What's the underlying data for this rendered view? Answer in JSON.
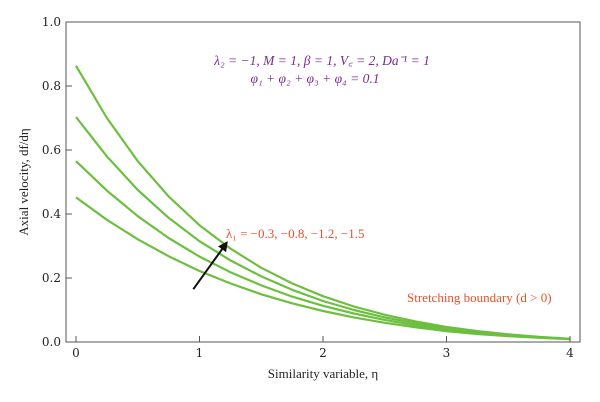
{
  "chart_data": {
    "type": "line",
    "xlabel": "Similarity variable, η",
    "ylabel": "Axial velocity, df/dη",
    "xlim": [
      0,
      4
    ],
    "ylim": [
      0,
      1.0
    ],
    "xticks": [
      "0",
      "1",
      "2",
      "3",
      "4"
    ],
    "yticks": [
      "0.0",
      "0.2",
      "0.4",
      "0.6",
      "0.8",
      "1.0"
    ],
    "grid": false,
    "series": [
      {
        "x": [
          0,
          0.25,
          0.5,
          0.75,
          1,
          1.25,
          1.5,
          1.75,
          2,
          2.25,
          2.5,
          2.75,
          3,
          3.25,
          3.5,
          3.75,
          4
        ],
        "values": [
          0.863,
          0.7,
          0.565,
          0.455,
          0.365,
          0.292,
          0.232,
          0.183,
          0.143,
          0.111,
          0.085,
          0.064,
          0.047,
          0.034,
          0.024,
          0.016,
          0.01
        ]
      },
      {
        "x": [
          0,
          0.25,
          0.5,
          0.75,
          1,
          1.25,
          1.5,
          1.75,
          2,
          2.25,
          2.5,
          2.75,
          3,
          3.25,
          3.5,
          3.75,
          4
        ],
        "values": [
          0.703,
          0.58,
          0.475,
          0.388,
          0.315,
          0.255,
          0.205,
          0.163,
          0.128,
          0.1,
          0.077,
          0.058,
          0.043,
          0.031,
          0.022,
          0.015,
          0.01
        ]
      },
      {
        "x": [
          0,
          0.25,
          0.5,
          0.75,
          1,
          1.25,
          1.5,
          1.75,
          2,
          2.25,
          2.5,
          2.75,
          3,
          3.25,
          3.5,
          3.75,
          4
        ],
        "values": [
          0.565,
          0.473,
          0.393,
          0.325,
          0.267,
          0.218,
          0.177,
          0.142,
          0.113,
          0.089,
          0.069,
          0.052,
          0.039,
          0.028,
          0.02,
          0.014,
          0.01
        ]
      },
      {
        "x": [
          0,
          0.25,
          0.5,
          0.75,
          1,
          1.25,
          1.5,
          1.75,
          2,
          2.25,
          2.5,
          2.75,
          3,
          3.25,
          3.5,
          3.75,
          4
        ],
        "values": [
          0.452,
          0.382,
          0.321,
          0.268,
          0.222,
          0.183,
          0.149,
          0.121,
          0.097,
          0.077,
          0.06,
          0.046,
          0.034,
          0.025,
          0.018,
          0.013,
          0.009
        ]
      }
    ],
    "annotations": {
      "params_line1": "λ₂ = −1, M = 1, β = 1, V꜀ = 2, Da⁻¹ = 1",
      "params_line2": "φ₁ + φ₂ + φ₃ + φ₄ = 0.1",
      "lambda_label": "λ₁ = −0.3, −0.8, −1.2, −1.5",
      "boundary_label": "Stretching boundary (d > 0)",
      "arrow_from": [
        0.95,
        0.165
      ],
      "arrow_to": [
        1.22,
        0.31
      ]
    },
    "colors": {
      "line": "#6cbf3f",
      "params": "#7a2a8c",
      "annotation": "#e2522b",
      "arrow": "#111111"
    }
  }
}
